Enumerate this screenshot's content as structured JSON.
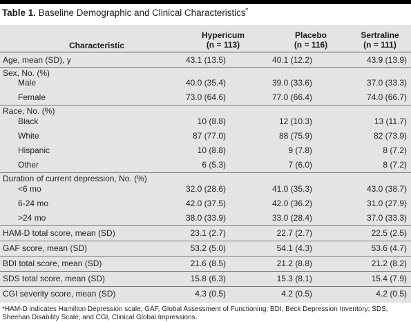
{
  "title": {
    "label": "Table 1.",
    "text": "Baseline Demographic and Clinical Characteristics",
    "note_mark": "*"
  },
  "columns": {
    "characteristic": "Characteristic",
    "hypericum": [
      "Hypericum",
      "(n = 113)"
    ],
    "placebo": [
      "Placebo",
      "(n = 116)"
    ],
    "sertraline": [
      "Sertraline",
      "(n = 111)"
    ]
  },
  "rows": [
    {
      "label": "Age, mean (SD), y",
      "values": [
        "43.1 (13.5)",
        "40.1 (12.2)",
        "43.9 (13.9)"
      ]
    },
    {
      "label": "Sex, No. (%)",
      "values": [
        "",
        "",
        ""
      ]
    },
    {
      "label": "Male",
      "values": [
        "40.0 (35.4)",
        "39.0 (33.6)",
        "37.0 (33.3)"
      ]
    },
    {
      "label": "Female",
      "values": [
        "73.0 (64.6)",
        "77.0 (66.4)",
        "74.0 (66.7)"
      ]
    },
    {
      "label": "Race, No. (%)",
      "values": [
        "",
        "",
        ""
      ]
    },
    {
      "label": "Black",
      "values": [
        "10 (8.8)",
        "12 (10.3)",
        "13 (11.7)"
      ]
    },
    {
      "label": "White",
      "values": [
        "87 (77.0)",
        "88 (75.9)",
        "82 (73.9)"
      ]
    },
    {
      "label": "Hispanic",
      "values": [
        "10 (8.8)",
        "9 (7.8)",
        "8 (7.2)"
      ]
    },
    {
      "label": "Other",
      "values": [
        "6 (5.3)",
        "7 (6.0)",
        "8 (7.2)"
      ]
    },
    {
      "label": "Duration of current depression, No. (%)",
      "values": [
        "",
        "",
        ""
      ]
    },
    {
      "label": "<6 mo",
      "values": [
        "32.0 (28.6)",
        "41.0 (35.3)",
        "43.0 (38.7)"
      ]
    },
    {
      "label": "6-24 mo",
      "values": [
        "42.0 (37.5)",
        "42.0 (36.2)",
        "31.0 (27.9)"
      ]
    },
    {
      "label": ">24 mo",
      "values": [
        "38.0 (33.9)",
        "33.0 (28.4)",
        "37.0 (33.3)"
      ]
    },
    {
      "label": "HAM-D total score, mean (SD)",
      "values": [
        "23.1 (2.7)",
        "22.7 (2.7)",
        "22.5 (2.5)"
      ]
    },
    {
      "label": "GAF score, mean (SD)",
      "values": [
        "53.2 (5.0)",
        "54.1 (4.3)",
        "53.6 (4.7)"
      ]
    },
    {
      "label": "BDI total score, mean (SD)",
      "values": [
        "21.6 (8.5)",
        "21.2 (8.8)",
        "21.2 (8.2)"
      ]
    },
    {
      "label": "SDS total score, mean (SD)",
      "values": [
        "15.8 (6.3)",
        "15.3 (8.1)",
        "15.4 (7.9)"
      ]
    },
    {
      "label": "CGI severity score, mean (SD)",
      "values": [
        "4.3 (0.5)",
        "4.2 (0.5)",
        "4.2 (0.5)"
      ]
    }
  ],
  "footnote": "*HAM-D indicates Hamilton Depression scale; GAF, Global Assessment of Functioning; BDI, Beck Depression Inventory; SDS, Sheehan Disability Scale; and CGI, Clinical Global Impressions."
}
